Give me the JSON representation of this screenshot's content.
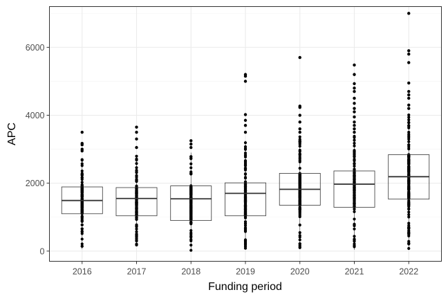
{
  "chart_data": {
    "type": "box",
    "title": "",
    "xlabel": "Funding period",
    "ylabel": "APC",
    "categories": [
      "2016",
      "2017",
      "2018",
      "2019",
      "2020",
      "2021",
      "2022"
    ],
    "ylim": [
      -300,
      7200
    ],
    "yticks": [
      0,
      2000,
      4000,
      6000
    ],
    "ytick_labels": [
      "0",
      "2000",
      "4000",
      "6000"
    ],
    "grid": true,
    "legend": "none",
    "boxes": [
      {
        "category": "2016",
        "q1": 1100,
        "median": 1490,
        "q3": 1890,
        "points_min": 60,
        "points_max": 2700,
        "outliers": [
          3500,
          3170,
          3130,
          3000,
          2950
        ]
      },
      {
        "category": "2017",
        "q1": 1040,
        "median": 1550,
        "q3": 1870,
        "points_min": 150,
        "points_max": 2800,
        "outliers": [
          3650,
          3500,
          3300,
          3050
        ]
      },
      {
        "category": "2018",
        "q1": 900,
        "median": 1540,
        "q3": 1920,
        "points_min": 20,
        "points_max": 2900,
        "outliers": [
          3250,
          3150,
          3050
        ]
      },
      {
        "category": "2019",
        "q1": 1040,
        "median": 1700,
        "q3": 2010,
        "points_min": 60,
        "points_max": 3250,
        "outliers": [
          5200,
          5150,
          5000,
          4020,
          3850,
          3700,
          3500
        ]
      },
      {
        "category": "2020",
        "q1": 1350,
        "median": 1820,
        "q3": 2290,
        "points_min": 80,
        "points_max": 3400,
        "outliers": [
          5700,
          4270,
          4230,
          4000,
          3800,
          3600,
          3500
        ]
      },
      {
        "category": "2021",
        "q1": 1290,
        "median": 1970,
        "q3": 2360,
        "points_min": 40,
        "points_max": 3400,
        "outliers": [
          5480,
          5200,
          4930,
          4800,
          4700,
          4500,
          4350,
          4200,
          4100,
          3950,
          3800,
          3700,
          3600,
          3500
        ]
      },
      {
        "category": "2022",
        "q1": 1530,
        "median": 2190,
        "q3": 2840,
        "points_min": 60,
        "points_max": 4050,
        "outliers": [
          7000,
          5900,
          5800,
          5550,
          4950,
          4700,
          4600,
          4500,
          4300,
          4200
        ]
      }
    ],
    "colors": {
      "panel_border": "#333333",
      "grid_major": "#ebebeb",
      "grid_minor": "#f5f5f5",
      "box_line": "#333333",
      "points": "#000000",
      "tick_text": "#4d4d4d"
    }
  }
}
